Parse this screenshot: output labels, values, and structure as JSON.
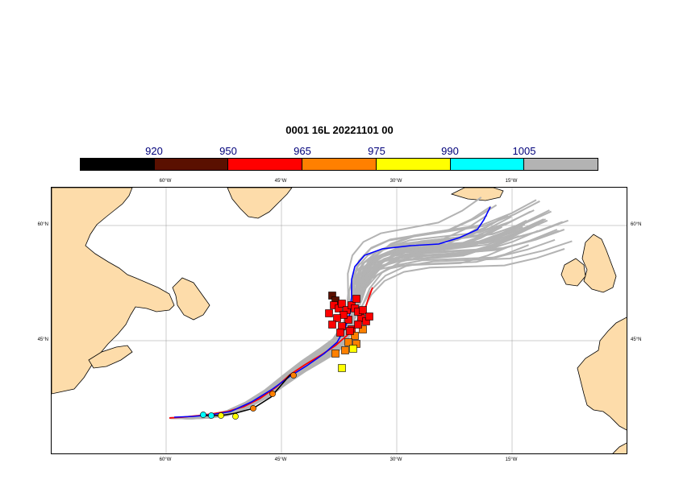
{
  "title": "0001 16L 20221101 00",
  "colorbar": {
    "labels": [
      "920",
      "950",
      "965",
      "975",
      "990",
      "1005"
    ],
    "colors": [
      "#000000",
      "#5a1000",
      "#ff0000",
      "#ff8000",
      "#ffff00",
      "#00ffff",
      "#b3b3b3"
    ]
  },
  "map": {
    "lon_ticks": [
      "60°W",
      "45°W",
      "30°W",
      "15°W"
    ],
    "lat_ticks": [
      "60°N",
      "45°N"
    ],
    "land_color": "#fddcaa",
    "ensemble_color": "#b3b3b3",
    "deterministic_color": "#0000ff",
    "control_color": "#ff0000",
    "observed_color": "#000000"
  }
}
